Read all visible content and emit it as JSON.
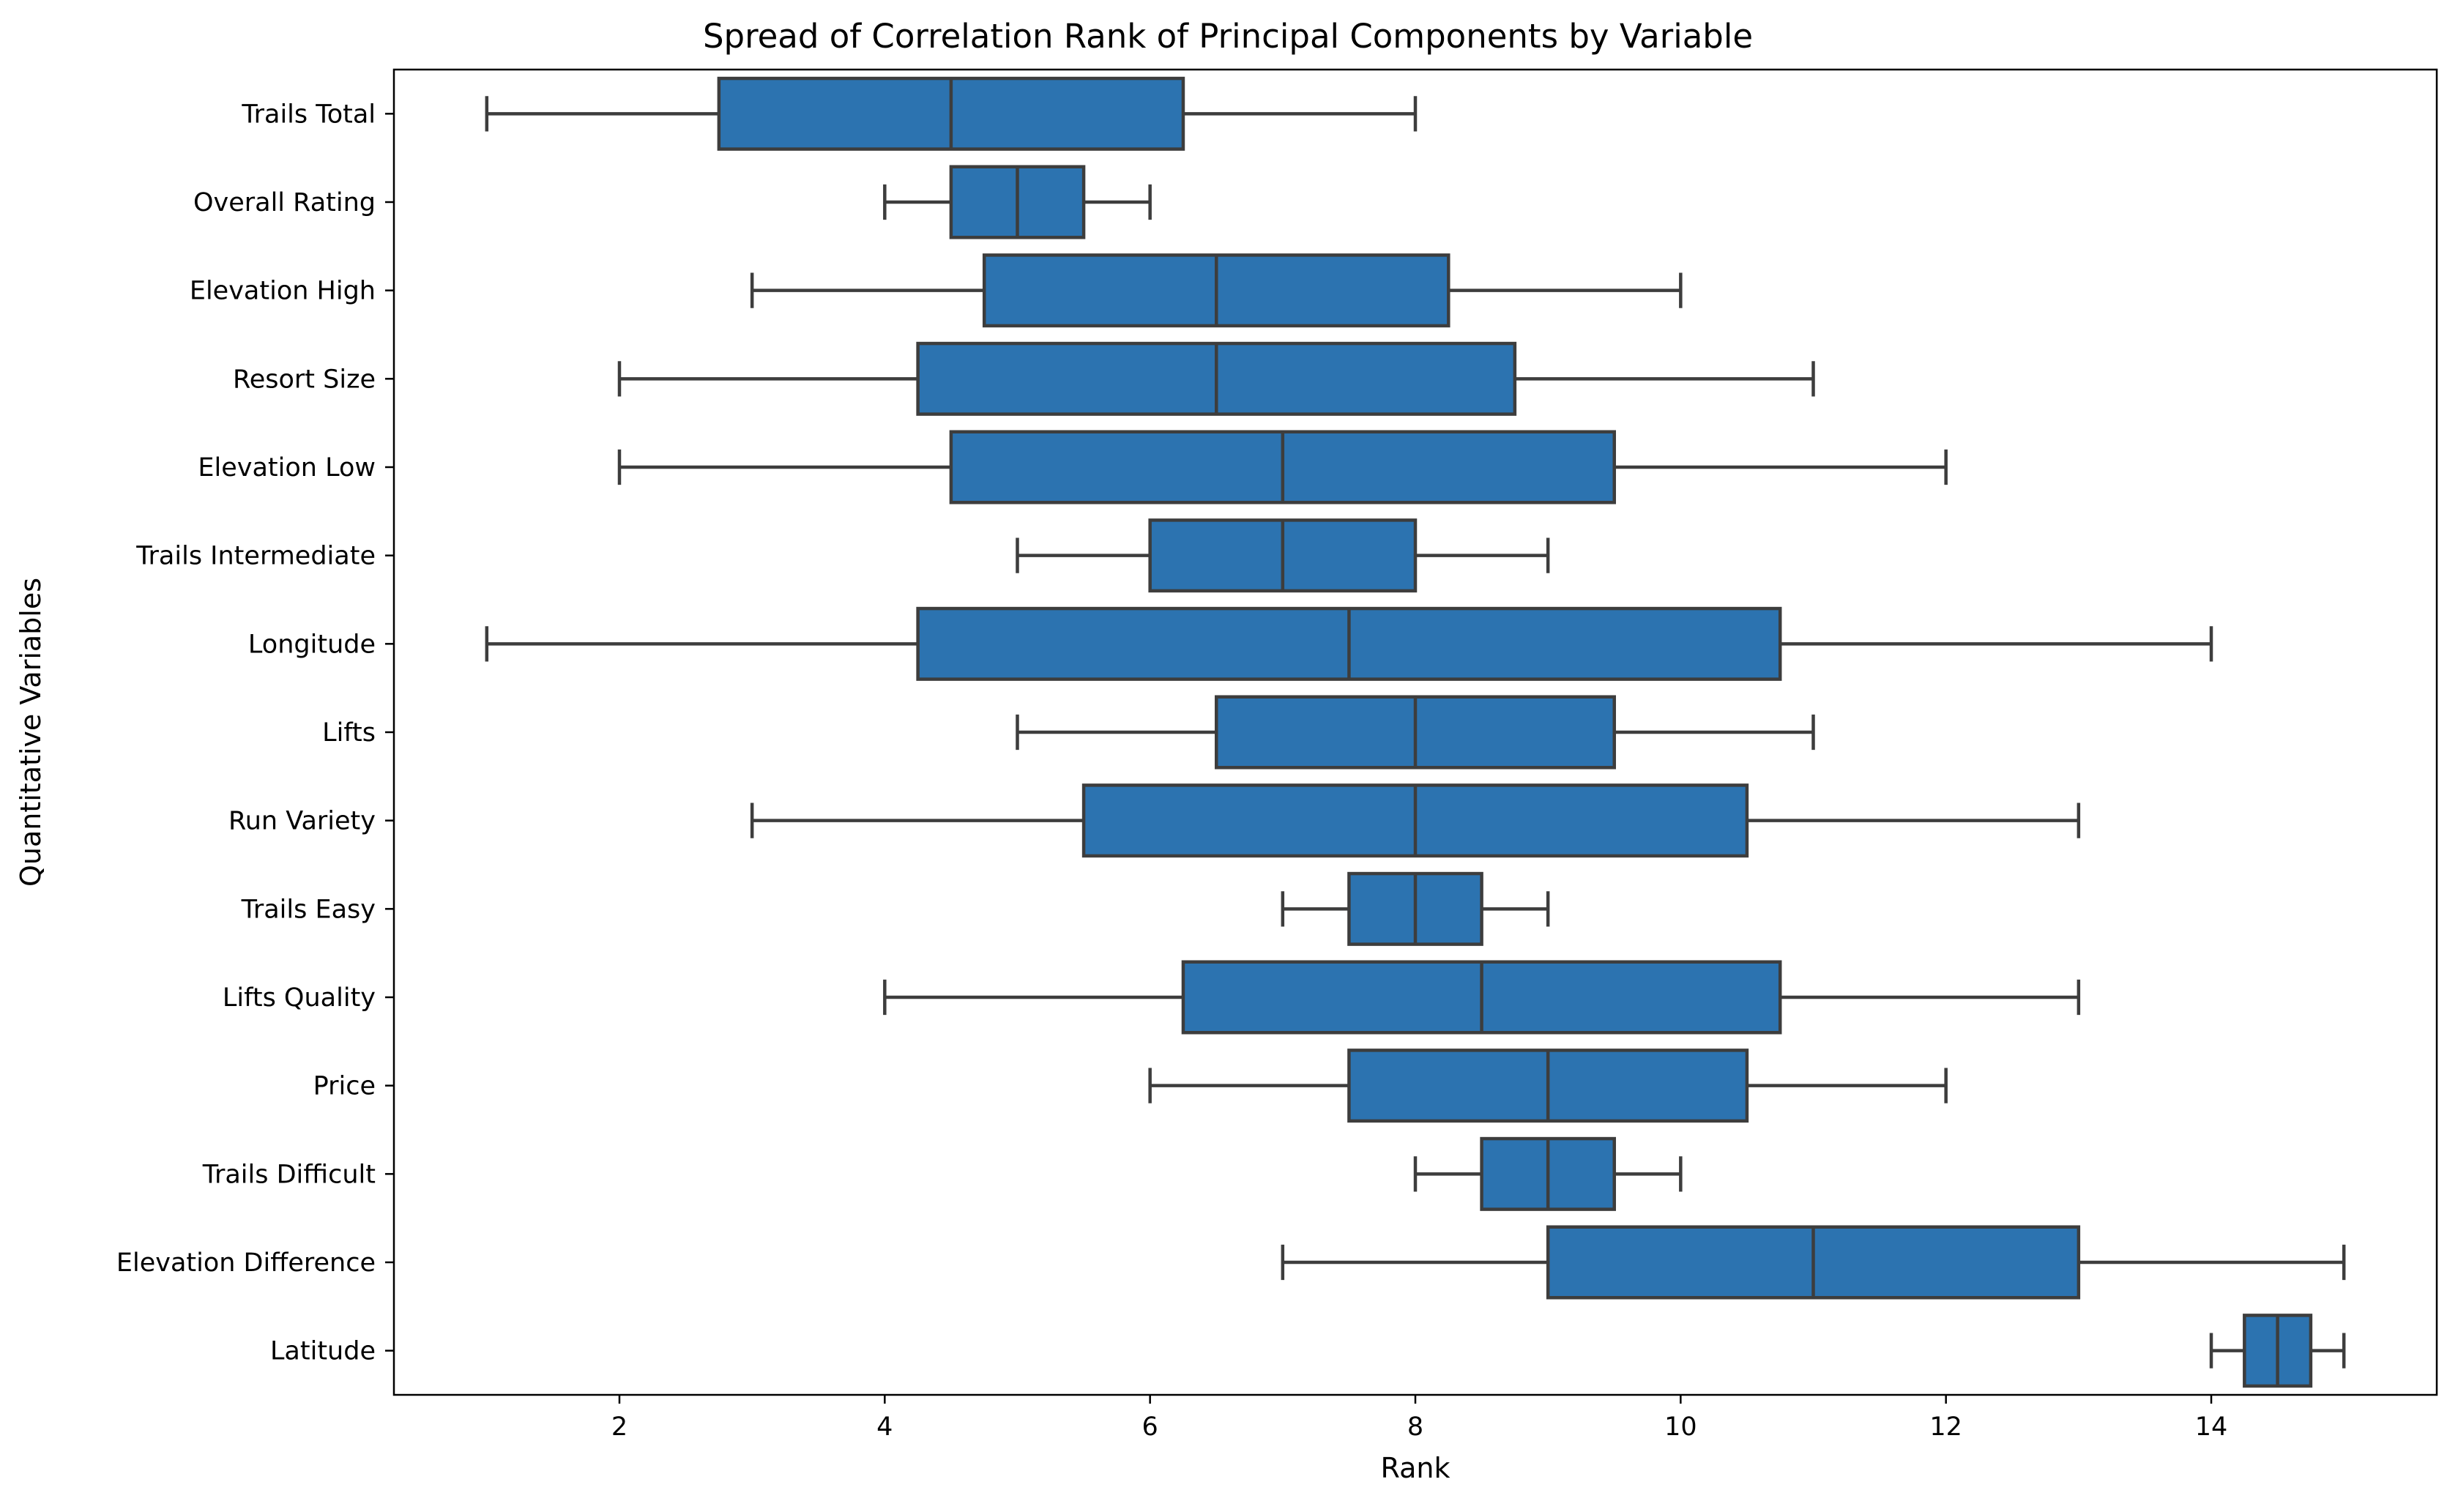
{
  "chart_data": {
    "type": "boxplot",
    "orientation": "horizontal",
    "title": "Spread of Correlation Rank of Principal Components by Variable",
    "xlabel": "Rank",
    "ylabel": "Quantitative Variables",
    "xlim": [
      0.3,
      15.7
    ],
    "xticks": [
      2,
      4,
      6,
      8,
      10,
      12,
      14
    ],
    "grid": false,
    "legend": "none",
    "box_color": "#2c73b0",
    "line_color": "#3d3d3d",
    "categories": [
      "Trails Total",
      "Overall Rating",
      "Elevation High",
      "Resort Size",
      "Elevation Low",
      "Trails Intermediate",
      "Longitude",
      "Lifts",
      "Run Variety",
      "Trails Easy",
      "Lifts Quality",
      "Price",
      "Trails Difficult",
      "Elevation Difference",
      "Latitude"
    ],
    "boxes": [
      {
        "label": "Trails Total",
        "whislo": 1,
        "q1": 2.75,
        "med": 4.5,
        "q3": 6.25,
        "whishi": 8
      },
      {
        "label": "Overall Rating",
        "whislo": 4,
        "q1": 4.5,
        "med": 5,
        "q3": 5.5,
        "whishi": 6
      },
      {
        "label": "Elevation High",
        "whislo": 3,
        "q1": 4.75,
        "med": 6.5,
        "q3": 8.25,
        "whishi": 10
      },
      {
        "label": "Resort Size",
        "whislo": 2,
        "q1": 4.25,
        "med": 6.5,
        "q3": 8.75,
        "whishi": 11
      },
      {
        "label": "Elevation Low",
        "whislo": 2,
        "q1": 4.5,
        "med": 7,
        "q3": 9.5,
        "whishi": 12
      },
      {
        "label": "Trails Intermediate",
        "whislo": 5,
        "q1": 6,
        "med": 7,
        "q3": 8,
        "whishi": 9
      },
      {
        "label": "Longitude",
        "whislo": 1,
        "q1": 4.25,
        "med": 7.5,
        "q3": 10.75,
        "whishi": 14
      },
      {
        "label": "Lifts",
        "whislo": 5,
        "q1": 6.5,
        "med": 8,
        "q3": 9.5,
        "whishi": 11
      },
      {
        "label": "Run Variety",
        "whislo": 3,
        "q1": 5.5,
        "med": 8,
        "q3": 10.5,
        "whishi": 13
      },
      {
        "label": "Trails Easy",
        "whislo": 7,
        "q1": 7.5,
        "med": 8,
        "q3": 8.5,
        "whishi": 9
      },
      {
        "label": "Lifts Quality",
        "whislo": 4,
        "q1": 6.25,
        "med": 8.5,
        "q3": 10.75,
        "whishi": 13
      },
      {
        "label": "Price",
        "whislo": 6,
        "q1": 7.5,
        "med": 9,
        "q3": 10.5,
        "whishi": 12
      },
      {
        "label": "Trails Difficult",
        "whislo": 8,
        "q1": 8.5,
        "med": 9,
        "q3": 9.5,
        "whishi": 10
      },
      {
        "label": "Elevation Difference",
        "whislo": 7,
        "q1": 9,
        "med": 11,
        "q3": 13,
        "whishi": 15
      },
      {
        "label": "Latitude",
        "whislo": 14,
        "q1": 14.25,
        "med": 14.5,
        "q3": 14.75,
        "whishi": 15
      }
    ]
  }
}
